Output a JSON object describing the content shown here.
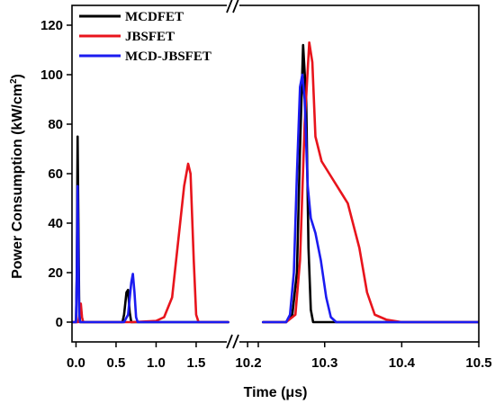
{
  "chart_data": {
    "type": "line",
    "xlabel": "Time (μs)",
    "ylabel_main": "Power Consumption (kW/cm",
    "ylabel_sup": "2",
    "ylabel_end": ")",
    "ylim": [
      -8,
      128
    ],
    "yticks": [
      0,
      20,
      40,
      60,
      80,
      100,
      120
    ],
    "ytick_labels": [
      "0",
      "20",
      "40",
      "60",
      "80",
      "100",
      "120"
    ],
    "x_axis_break": true,
    "x_segments": [
      {
        "range": [
          -0.05,
          1.95
        ],
        "ticks": [
          0.0,
          0.5,
          1.0,
          1.5
        ],
        "tick_labels": [
          "0.0",
          "0.5",
          "1.0",
          "1.5"
        ]
      },
      {
        "range": [
          10.18,
          10.5
        ],
        "ticks": [
          10.2,
          10.3,
          10.4,
          10.5
        ],
        "tick_labels": [
          "10.2",
          "10.3",
          "10.4",
          "10.5"
        ]
      }
    ],
    "break_label": "10.2",
    "legend_placement": "top-left",
    "colors": {
      "MCDFET": "#000000",
      "JBSFET": "#e8141c",
      "MCD-JBSFET": "#1b1bf0"
    },
    "series": [
      {
        "name": "MCDFET",
        "color": "#000000",
        "segments": [
          [
            [
              -0.05,
              0
            ],
            [
              0.0,
              0
            ],
            [
              0.01,
              20
            ],
            [
              0.02,
              75
            ],
            [
              0.03,
              40
            ],
            [
              0.04,
              5
            ],
            [
              0.05,
              0
            ],
            [
              0.58,
              0
            ],
            [
              0.6,
              3
            ],
            [
              0.63,
              12
            ],
            [
              0.65,
              13
            ],
            [
              0.67,
              4
            ],
            [
              0.69,
              0
            ],
            [
              1.9,
              0
            ]
          ],
          [
            [
              10.22,
              0
            ],
            [
              10.25,
              0
            ],
            [
              10.258,
              3
            ],
            [
              10.264,
              20
            ],
            [
              10.268,
              70
            ],
            [
              10.272,
              112
            ],
            [
              10.276,
              90
            ],
            [
              10.279,
              30
            ],
            [
              10.282,
              5
            ],
            [
              10.285,
              0
            ],
            [
              10.5,
              0
            ]
          ]
        ]
      },
      {
        "name": "JBSFET",
        "color": "#e8141c",
        "segments": [
          [
            [
              -0.05,
              0
            ],
            [
              0.03,
              0
            ],
            [
              0.05,
              5
            ],
            [
              0.06,
              7.5
            ],
            [
              0.075,
              2
            ],
            [
              0.09,
              0
            ],
            [
              0.7,
              0
            ],
            [
              1.0,
              0.5
            ],
            [
              1.1,
              2
            ],
            [
              1.2,
              10
            ],
            [
              1.3,
              40
            ],
            [
              1.35,
              55
            ],
            [
              1.4,
              64
            ],
            [
              1.43,
              60
            ],
            [
              1.47,
              25
            ],
            [
              1.5,
              3
            ],
            [
              1.53,
              0
            ],
            [
              1.9,
              0
            ]
          ],
          [
            [
              10.22,
              0
            ],
            [
              10.25,
              0
            ],
            [
              10.262,
              3
            ],
            [
              10.268,
              25
            ],
            [
              10.274,
              80
            ],
            [
              10.28,
              113
            ],
            [
              10.284,
              105
            ],
            [
              10.288,
              75
            ],
            [
              10.296,
              65
            ],
            [
              10.31,
              58
            ],
            [
              10.33,
              48
            ],
            [
              10.345,
              30
            ],
            [
              10.355,
              12
            ],
            [
              10.365,
              3
            ],
            [
              10.38,
              1
            ],
            [
              10.4,
              0
            ],
            [
              10.5,
              0
            ]
          ]
        ]
      },
      {
        "name": "MCD-JBSFET",
        "color": "#1b1bf0",
        "segments": [
          [
            [
              -0.05,
              0
            ],
            [
              0.0,
              0
            ],
            [
              0.01,
              18
            ],
            [
              0.02,
              55
            ],
            [
              0.03,
              25
            ],
            [
              0.04,
              3
            ],
            [
              0.05,
              0
            ],
            [
              0.6,
              0
            ],
            [
              0.65,
              3
            ],
            [
              0.69,
              16
            ],
            [
              0.71,
              19.5
            ],
            [
              0.73,
              12
            ],
            [
              0.75,
              2
            ],
            [
              0.77,
              0
            ],
            [
              1.9,
              0
            ]
          ],
          [
            [
              10.22,
              0
            ],
            [
              10.25,
              0
            ],
            [
              10.255,
              3
            ],
            [
              10.26,
              20
            ],
            [
              10.264,
              60
            ],
            [
              10.268,
              95
            ],
            [
              10.271,
              100
            ],
            [
              10.274,
              90
            ],
            [
              10.278,
              55
            ],
            [
              10.282,
              42
            ],
            [
              10.288,
              36
            ],
            [
              10.295,
              25
            ],
            [
              10.302,
              10
            ],
            [
              10.308,
              2
            ],
            [
              10.315,
              0
            ],
            [
              10.5,
              0
            ]
          ]
        ]
      }
    ]
  }
}
